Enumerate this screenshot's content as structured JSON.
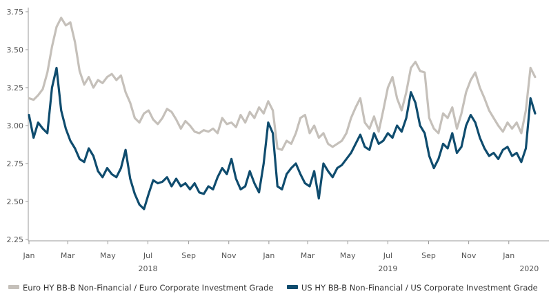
{
  "chart_data": {
    "type": "line",
    "title": "",
    "xlabel": "",
    "ylabel": "",
    "ylim": [
      2.25,
      3.75
    ],
    "y_ticks": [
      "2.25",
      "2.50",
      "2.75",
      "3.00",
      "3.25",
      "3.50",
      "3.75"
    ],
    "x_range": [
      "2018-01-01",
      "2020-02-29"
    ],
    "x_ticks": [
      {
        "date": "2018-01-01",
        "label": "Jan"
      },
      {
        "date": "2018-03-01",
        "label": "Mar"
      },
      {
        "date": "2018-05-01",
        "label": "May"
      },
      {
        "date": "2018-07-01",
        "label": "Jul"
      },
      {
        "date": "2018-09-01",
        "label": "Sep"
      },
      {
        "date": "2018-11-01",
        "label": "Nov"
      },
      {
        "date": "2019-01-01",
        "label": "Jan"
      },
      {
        "date": "2019-03-01",
        "label": "Mar"
      },
      {
        "date": "2019-05-01",
        "label": "May"
      },
      {
        "date": "2019-07-01",
        "label": "Jul"
      },
      {
        "date": "2019-09-01",
        "label": "Sep"
      },
      {
        "date": "2019-11-01",
        "label": "Nov"
      },
      {
        "date": "2020-01-01",
        "label": "Jan"
      }
    ],
    "year_labels": [
      {
        "date": "2018-07-01",
        "label": "2018"
      },
      {
        "date": "2019-07-01",
        "label": "2019"
      },
      {
        "date": "2020-02-01",
        "label": "2020"
      }
    ],
    "grid": false,
    "legend": "bottom",
    "series": [
      {
        "name": "Euro HY BB-B Non-Financial / Euro Corporate Investment Grade",
        "color": "#c5c0ba",
        "points": [
          [
            "2018-01-01",
            3.18
          ],
          [
            "2018-01-08",
            3.17
          ],
          [
            "2018-01-15",
            3.2
          ],
          [
            "2018-01-22",
            3.24
          ],
          [
            "2018-01-29",
            3.35
          ],
          [
            "2018-02-05",
            3.52
          ],
          [
            "2018-02-12",
            3.65
          ],
          [
            "2018-02-19",
            3.71
          ],
          [
            "2018-02-26",
            3.66
          ],
          [
            "2018-03-05",
            3.68
          ],
          [
            "2018-03-12",
            3.55
          ],
          [
            "2018-03-19",
            3.36
          ],
          [
            "2018-03-26",
            3.27
          ],
          [
            "2018-04-02",
            3.32
          ],
          [
            "2018-04-09",
            3.25
          ],
          [
            "2018-04-16",
            3.3
          ],
          [
            "2018-04-23",
            3.28
          ],
          [
            "2018-04-30",
            3.32
          ],
          [
            "2018-05-07",
            3.34
          ],
          [
            "2018-05-14",
            3.3
          ],
          [
            "2018-05-21",
            3.33
          ],
          [
            "2018-05-28",
            3.22
          ],
          [
            "2018-06-04",
            3.15
          ],
          [
            "2018-06-11",
            3.05
          ],
          [
            "2018-06-18",
            3.02
          ],
          [
            "2018-06-25",
            3.08
          ],
          [
            "2018-07-02",
            3.1
          ],
          [
            "2018-07-09",
            3.04
          ],
          [
            "2018-07-16",
            3.01
          ],
          [
            "2018-07-23",
            3.05
          ],
          [
            "2018-07-30",
            3.11
          ],
          [
            "2018-08-06",
            3.09
          ],
          [
            "2018-08-13",
            3.04
          ],
          [
            "2018-08-20",
            2.98
          ],
          [
            "2018-08-27",
            3.03
          ],
          [
            "2018-09-03",
            3.0
          ],
          [
            "2018-09-10",
            2.96
          ],
          [
            "2018-09-17",
            2.95
          ],
          [
            "2018-09-24",
            2.97
          ],
          [
            "2018-10-01",
            2.96
          ],
          [
            "2018-10-08",
            2.98
          ],
          [
            "2018-10-15",
            2.95
          ],
          [
            "2018-10-22",
            3.05
          ],
          [
            "2018-10-29",
            3.01
          ],
          [
            "2018-11-05",
            3.02
          ],
          [
            "2018-11-12",
            2.99
          ],
          [
            "2018-11-19",
            3.07
          ],
          [
            "2018-11-26",
            3.02
          ],
          [
            "2018-12-03",
            3.09
          ],
          [
            "2018-12-10",
            3.05
          ],
          [
            "2018-12-17",
            3.12
          ],
          [
            "2018-12-24",
            3.08
          ],
          [
            "2018-12-31",
            3.16
          ],
          [
            "2019-01-07",
            3.1
          ],
          [
            "2019-01-14",
            2.85
          ],
          [
            "2019-01-21",
            2.84
          ],
          [
            "2019-01-28",
            2.9
          ],
          [
            "2019-02-04",
            2.88
          ],
          [
            "2019-02-11",
            2.95
          ],
          [
            "2019-02-18",
            3.05
          ],
          [
            "2019-02-25",
            3.07
          ],
          [
            "2019-03-04",
            2.95
          ],
          [
            "2019-03-11",
            3.0
          ],
          [
            "2019-03-18",
            2.92
          ],
          [
            "2019-03-25",
            2.95
          ],
          [
            "2019-04-01",
            2.88
          ],
          [
            "2019-04-08",
            2.86
          ],
          [
            "2019-04-15",
            2.88
          ],
          [
            "2019-04-22",
            2.9
          ],
          [
            "2019-04-29",
            2.95
          ],
          [
            "2019-05-06",
            3.05
          ],
          [
            "2019-05-13",
            3.12
          ],
          [
            "2019-05-20",
            3.18
          ],
          [
            "2019-05-27",
            3.02
          ],
          [
            "2019-06-03",
            2.98
          ],
          [
            "2019-06-10",
            3.06
          ],
          [
            "2019-06-17",
            2.96
          ],
          [
            "2019-06-24",
            3.1
          ],
          [
            "2019-07-01",
            3.25
          ],
          [
            "2019-07-08",
            3.32
          ],
          [
            "2019-07-15",
            3.18
          ],
          [
            "2019-07-22",
            3.1
          ],
          [
            "2019-07-29",
            3.22
          ],
          [
            "2019-08-05",
            3.38
          ],
          [
            "2019-08-12",
            3.42
          ],
          [
            "2019-08-19",
            3.36
          ],
          [
            "2019-08-26",
            3.35
          ],
          [
            "2019-09-02",
            3.05
          ],
          [
            "2019-09-09",
            2.98
          ],
          [
            "2019-09-16",
            2.95
          ],
          [
            "2019-09-23",
            3.08
          ],
          [
            "2019-09-30",
            3.05
          ],
          [
            "2019-10-07",
            3.12
          ],
          [
            "2019-10-14",
            2.98
          ],
          [
            "2019-10-21",
            3.08
          ],
          [
            "2019-10-28",
            3.22
          ],
          [
            "2019-11-04",
            3.3
          ],
          [
            "2019-11-11",
            3.35
          ],
          [
            "2019-11-18",
            3.25
          ],
          [
            "2019-11-25",
            3.18
          ],
          [
            "2019-12-02",
            3.1
          ],
          [
            "2019-12-09",
            3.05
          ],
          [
            "2019-12-16",
            3.0
          ],
          [
            "2019-12-23",
            2.96
          ],
          [
            "2019-12-30",
            3.02
          ],
          [
            "2020-01-06",
            2.98
          ],
          [
            "2020-01-13",
            3.02
          ],
          [
            "2020-01-20",
            2.95
          ],
          [
            "2020-01-27",
            3.1
          ],
          [
            "2020-02-03",
            3.38
          ],
          [
            "2020-02-10",
            3.32
          ]
        ]
      },
      {
        "name": "US HY BB-B Non-Financial / US Corporate Investment Grade",
        "color": "#0f4c6e",
        "points": [
          [
            "2018-01-01",
            3.07
          ],
          [
            "2018-01-08",
            2.92
          ],
          [
            "2018-01-15",
            3.02
          ],
          [
            "2018-01-22",
            2.98
          ],
          [
            "2018-01-29",
            2.95
          ],
          [
            "2018-02-05",
            3.25
          ],
          [
            "2018-02-12",
            3.38
          ],
          [
            "2018-02-19",
            3.1
          ],
          [
            "2018-02-26",
            2.98
          ],
          [
            "2018-03-05",
            2.9
          ],
          [
            "2018-03-12",
            2.85
          ],
          [
            "2018-03-19",
            2.78
          ],
          [
            "2018-03-26",
            2.76
          ],
          [
            "2018-04-02",
            2.85
          ],
          [
            "2018-04-09",
            2.8
          ],
          [
            "2018-04-16",
            2.7
          ],
          [
            "2018-04-23",
            2.66
          ],
          [
            "2018-04-30",
            2.72
          ],
          [
            "2018-05-07",
            2.68
          ],
          [
            "2018-05-14",
            2.66
          ],
          [
            "2018-05-21",
            2.72
          ],
          [
            "2018-05-28",
            2.84
          ],
          [
            "2018-06-04",
            2.65
          ],
          [
            "2018-06-11",
            2.55
          ],
          [
            "2018-06-18",
            2.48
          ],
          [
            "2018-06-25",
            2.45
          ],
          [
            "2018-07-02",
            2.55
          ],
          [
            "2018-07-09",
            2.64
          ],
          [
            "2018-07-16",
            2.62
          ],
          [
            "2018-07-23",
            2.63
          ],
          [
            "2018-07-30",
            2.66
          ],
          [
            "2018-08-06",
            2.6
          ],
          [
            "2018-08-13",
            2.65
          ],
          [
            "2018-08-20",
            2.6
          ],
          [
            "2018-08-27",
            2.62
          ],
          [
            "2018-09-03",
            2.58
          ],
          [
            "2018-09-10",
            2.62
          ],
          [
            "2018-09-17",
            2.56
          ],
          [
            "2018-09-24",
            2.55
          ],
          [
            "2018-10-01",
            2.6
          ],
          [
            "2018-10-08",
            2.58
          ],
          [
            "2018-10-15",
            2.66
          ],
          [
            "2018-10-22",
            2.72
          ],
          [
            "2018-10-29",
            2.68
          ],
          [
            "2018-11-05",
            2.78
          ],
          [
            "2018-11-12",
            2.65
          ],
          [
            "2018-11-19",
            2.58
          ],
          [
            "2018-11-26",
            2.6
          ],
          [
            "2018-12-03",
            2.7
          ],
          [
            "2018-12-10",
            2.62
          ],
          [
            "2018-12-17",
            2.56
          ],
          [
            "2018-12-24",
            2.75
          ],
          [
            "2018-12-31",
            3.02
          ],
          [
            "2019-01-07",
            2.95
          ],
          [
            "2019-01-14",
            2.6
          ],
          [
            "2019-01-21",
            2.58
          ],
          [
            "2019-01-28",
            2.68
          ],
          [
            "2019-02-04",
            2.72
          ],
          [
            "2019-02-11",
            2.75
          ],
          [
            "2019-02-18",
            2.68
          ],
          [
            "2019-02-25",
            2.62
          ],
          [
            "2019-03-04",
            2.6
          ],
          [
            "2019-03-11",
            2.7
          ],
          [
            "2019-03-18",
            2.52
          ],
          [
            "2019-03-25",
            2.75
          ],
          [
            "2019-04-01",
            2.7
          ],
          [
            "2019-04-08",
            2.66
          ],
          [
            "2019-04-15",
            2.72
          ],
          [
            "2019-04-22",
            2.74
          ],
          [
            "2019-04-29",
            2.78
          ],
          [
            "2019-05-06",
            2.82
          ],
          [
            "2019-05-13",
            2.88
          ],
          [
            "2019-05-20",
            2.94
          ],
          [
            "2019-05-27",
            2.86
          ],
          [
            "2019-06-03",
            2.84
          ],
          [
            "2019-06-10",
            2.95
          ],
          [
            "2019-06-17",
            2.88
          ],
          [
            "2019-06-24",
            2.9
          ],
          [
            "2019-07-01",
            2.95
          ],
          [
            "2019-07-08",
            2.92
          ],
          [
            "2019-07-15",
            3.0
          ],
          [
            "2019-07-22",
            2.96
          ],
          [
            "2019-07-29",
            3.05
          ],
          [
            "2019-08-05",
            3.22
          ],
          [
            "2019-08-12",
            3.15
          ],
          [
            "2019-08-19",
            3.0
          ],
          [
            "2019-08-26",
            2.95
          ],
          [
            "2019-09-02",
            2.8
          ],
          [
            "2019-09-09",
            2.72
          ],
          [
            "2019-09-16",
            2.78
          ],
          [
            "2019-09-23",
            2.88
          ],
          [
            "2019-09-30",
            2.85
          ],
          [
            "2019-10-07",
            2.95
          ],
          [
            "2019-10-14",
            2.82
          ],
          [
            "2019-10-21",
            2.86
          ],
          [
            "2019-10-28",
            3.0
          ],
          [
            "2019-11-04",
            3.07
          ],
          [
            "2019-11-11",
            3.02
          ],
          [
            "2019-11-18",
            2.92
          ],
          [
            "2019-11-25",
            2.85
          ],
          [
            "2019-12-02",
            2.8
          ],
          [
            "2019-12-09",
            2.82
          ],
          [
            "2019-12-16",
            2.78
          ],
          [
            "2019-12-23",
            2.84
          ],
          [
            "2019-12-30",
            2.86
          ],
          [
            "2020-01-06",
            2.8
          ],
          [
            "2020-01-13",
            2.82
          ],
          [
            "2020-01-20",
            2.76
          ],
          [
            "2020-01-27",
            2.85
          ],
          [
            "2020-02-03",
            3.18
          ],
          [
            "2020-02-10",
            3.08
          ]
        ]
      }
    ]
  }
}
